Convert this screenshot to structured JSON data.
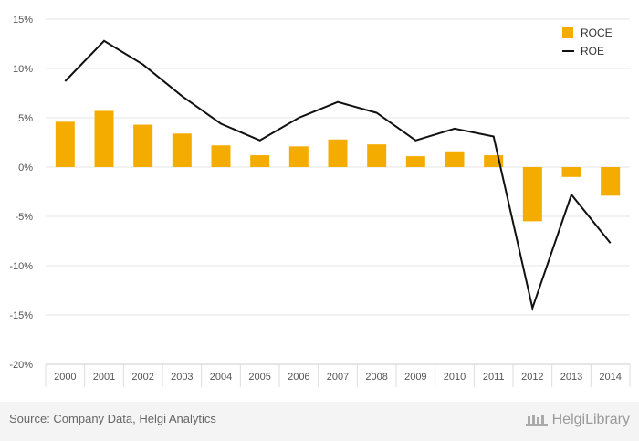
{
  "chart_data": {
    "type": "bar",
    "categories": [
      "2000",
      "2001",
      "2002",
      "2003",
      "2004",
      "2005",
      "2006",
      "2007",
      "2008",
      "2009",
      "2010",
      "2011",
      "2012",
      "2013",
      "2014"
    ],
    "series": [
      {
        "name": "ROCE",
        "type": "bar",
        "color": "#f5ac00",
        "values": [
          4.6,
          5.7,
          4.3,
          3.4,
          2.2,
          1.2,
          2.1,
          2.8,
          2.3,
          1.1,
          1.6,
          1.2,
          -5.5,
          -1.0,
          -2.9
        ]
      },
      {
        "name": "ROE",
        "type": "line",
        "color": "#111111",
        "values": [
          8.7,
          12.8,
          10.4,
          7.2,
          4.4,
          2.7,
          5.0,
          6.6,
          5.5,
          2.7,
          3.9,
          3.1,
          -14.3,
          -2.8,
          -7.7
        ]
      }
    ],
    "ylim": [
      -20,
      15
    ],
    "yticks": [
      15,
      10,
      5,
      0,
      -5,
      -10,
      -15,
      -20
    ],
    "ytick_labels": [
      "15%",
      "10%",
      "5%",
      "0%",
      "-5%",
      "-10%",
      "-15%",
      "-20%"
    ],
    "grid": true,
    "legend_position": "top-right"
  },
  "footer": {
    "source": "Source: Company Data, Helgi Analytics",
    "brand": "HelgiLibrary"
  }
}
